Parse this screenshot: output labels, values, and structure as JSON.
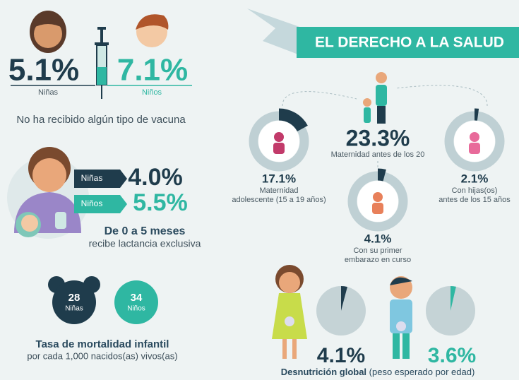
{
  "vaccine": {
    "girls": "5.1%",
    "girls_label": "Niñas",
    "boys": "7.1%",
    "boys_label": "Niños",
    "caption": "No ha recibido algún tipo de vacuna"
  },
  "breastfeeding": {
    "girls_label": "Niñas",
    "girls": "4.0%",
    "boys_label": "Niños",
    "boys": "5.5%",
    "title": "De 0 a 5 meses",
    "caption": "recibe lactancia exclusiva"
  },
  "mortality": {
    "girls": "28",
    "girls_label": "Niñas",
    "boys": "34",
    "boys_label": "Niños",
    "title": "Tasa de mortalidad infantil",
    "caption": "por cada 1,000 nacidos(as) vivos(as)"
  },
  "health": {
    "title": "EL DERECHO A LA SALUD",
    "maternity": {
      "label": "23.3%",
      "caption": "Maternidad antes de los 20"
    },
    "adolescent": {
      "value": 17.1,
      "label": "17.1%",
      "caption": [
        "Maternidad",
        "adolescente (15 a 19 años)"
      ]
    },
    "before15": {
      "value": 2.1,
      "label": "2.1%",
      "caption": [
        "Con hijas(os)",
        "antes de los 15 años"
      ]
    },
    "pregnant": {
      "value": 4.1,
      "label": "4.1%",
      "caption": [
        "Con su primer",
        "embarazo en curso"
      ]
    }
  },
  "malnutrition": {
    "girls": {
      "value": 4.1,
      "label": "4.1%"
    },
    "boys": {
      "value": 3.6,
      "label": "3.6%"
    },
    "title": "Desnutrición global",
    "subtitle": "(peso esperado por edad)"
  }
}
